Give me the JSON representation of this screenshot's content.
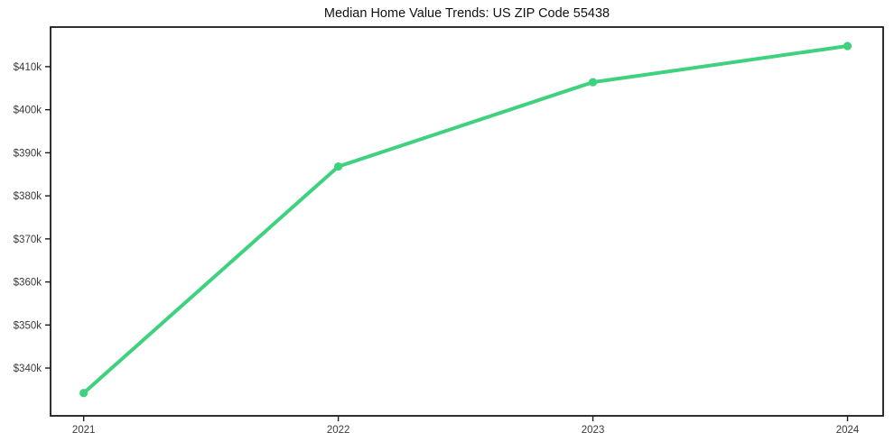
{
  "chart_data": {
    "type": "line",
    "title": "Median Home Value Trends: US ZIP Code 55438",
    "xlabel": "",
    "ylabel": "",
    "x": [
      2021,
      2022,
      2023,
      2024
    ],
    "series": [
      {
        "name": "Median Home Value",
        "values": [
          334200,
          386800,
          406400,
          414800
        ]
      }
    ],
    "x_ticks": [
      2021,
      2022,
      2023,
      2024
    ],
    "x_tick_labels": [
      "2021",
      "2022",
      "2023",
      "2024"
    ],
    "y_ticks": [
      340000,
      350000,
      360000,
      370000,
      380000,
      390000,
      400000,
      410000
    ],
    "y_tick_labels": [
      "$340k",
      "$350k",
      "$360k",
      "$370k",
      "$380k",
      "$390k",
      "$400k",
      "$410k"
    ],
    "xlim": [
      2020.87,
      2024.14
    ],
    "ylim": [
      328900,
      419200
    ],
    "grid": false,
    "legend": false,
    "marker": "circle",
    "colors": {
      "line": "#3ed17e",
      "axis": "#1a1a1a",
      "tick_label": "#3a3a3a",
      "title": "#111111",
      "background": "#ffffff"
    }
  }
}
